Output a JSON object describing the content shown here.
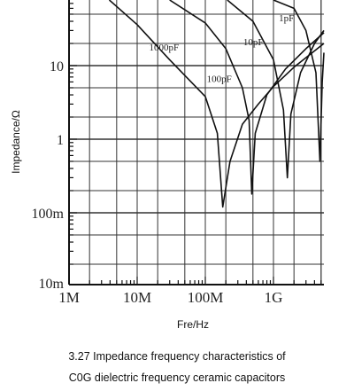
{
  "chart_data": {
    "type": "line",
    "xscale": "log",
    "yscale": "log",
    "xlim": [
      1000000,
      6000000000
    ],
    "ylim": [
      0.01,
      100
    ],
    "xlabel": "Fre/Hz",
    "ylabel": "Impedance/Ω",
    "x_ticks": [
      {
        "value": 1000000,
        "label": "1M"
      },
      {
        "value": 10000000,
        "label": "10M"
      },
      {
        "value": 100000000,
        "label": "100M"
      },
      {
        "value": 1000000000,
        "label": "1G"
      }
    ],
    "y_ticks": [
      {
        "value": 10,
        "label": "10"
      },
      {
        "value": 1,
        "label": "1"
      },
      {
        "value": 0.1,
        "label": "100m"
      },
      {
        "value": 0.01,
        "label": "10m"
      }
    ],
    "grid": true,
    "series": [
      {
        "name": "1000pF",
        "label": "1000pF",
        "resonance_x": 180000000,
        "points": [
          [
            3900000,
            100
          ],
          [
            10000000,
            36
          ],
          [
            30000000,
            12
          ],
          [
            100000000,
            3.8
          ],
          [
            150000000,
            1.2
          ],
          [
            180000000,
            0.12
          ],
          [
            230000000,
            0.5
          ],
          [
            350000000,
            1.6
          ],
          [
            600000000,
            3
          ],
          [
            1000000000,
            5.2
          ],
          [
            2000000000,
            9.5
          ],
          [
            5500000000,
            20
          ]
        ]
      },
      {
        "name": "100pF",
        "label": "100pF",
        "resonance_x": 480000000,
        "points": [
          [
            30000000,
            100
          ],
          [
            100000000,
            38
          ],
          [
            200000000,
            17
          ],
          [
            350000000,
            5
          ],
          [
            440000000,
            1.8
          ],
          [
            480000000,
            0.18
          ],
          [
            540000000,
            1.2
          ],
          [
            800000000,
            4
          ],
          [
            1500000000,
            9
          ],
          [
            3000000000,
            17
          ],
          [
            5500000000,
            28
          ]
        ]
      },
      {
        "name": "10pF",
        "label": "10pF",
        "resonance_x": 1600000000,
        "points": [
          [
            210000000,
            100
          ],
          [
            500000000,
            40
          ],
          [
            1000000000,
            12
          ],
          [
            1400000000,
            2.5
          ],
          [
            1600000000,
            0.3
          ],
          [
            1800000000,
            2.2
          ],
          [
            2500000000,
            8
          ],
          [
            4000000000,
            20
          ],
          [
            5500000000,
            30
          ]
        ]
      },
      {
        "name": "1pF",
        "label": "1pF",
        "resonance_x": 4800000000,
        "points": [
          [
            1000000000,
            100
          ],
          [
            2000000000,
            60
          ],
          [
            3000000000,
            30
          ],
          [
            4200000000,
            8
          ],
          [
            4800000000,
            0.5
          ],
          [
            5200000000,
            6
          ],
          [
            5800000000,
            15
          ]
        ]
      }
    ],
    "caption": "3.27 Impedance frequency characteristics of C0G dielectric frequency ceramic capacitors"
  },
  "caption": {
    "line1": "3.27 Impedance frequency characteristics of",
    "line2": "C0G dielectric frequency ceramic capacitors"
  }
}
